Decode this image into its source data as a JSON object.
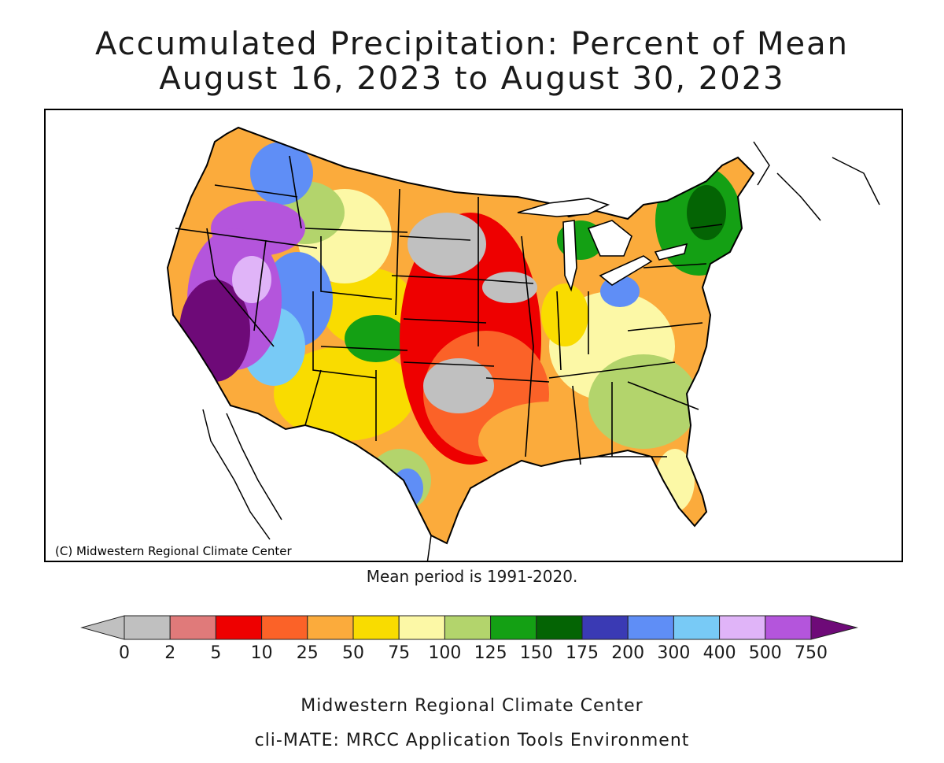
{
  "title_line1": "Accumulated Precipitation: Percent of Mean",
  "title_line2": "August 16, 2023 to August 30, 2023",
  "credit": "(C) Midwestern Regional Climate Center",
  "mean_note": "Mean period is 1991-2020.",
  "footer_line1": "Midwestern Regional Climate Center",
  "footer_line2": "cli-MATE: MRCC Application Tools Environment",
  "legend": {
    "bins": [
      {
        "color": "#c0c0c0"
      },
      {
        "color": "#e07a7a"
      },
      {
        "color": "#ee0000"
      },
      {
        "color": "#fb6228"
      },
      {
        "color": "#fbab3c"
      },
      {
        "color": "#f9dc00"
      },
      {
        "color": "#fcf8a6"
      },
      {
        "color": "#b3d46c"
      },
      {
        "color": "#14a014"
      },
      {
        "color": "#046404"
      },
      {
        "color": "#3a3ab4"
      },
      {
        "color": "#5f8ef6"
      },
      {
        "color": "#78caf6"
      },
      {
        "color": "#e0b4f8"
      },
      {
        "color": "#b455dc"
      }
    ],
    "low_arrow_color": "#c0c0c0",
    "high_arrow_color": "#6e0a78",
    "tick_labels": [
      "0",
      "2",
      "5",
      "10",
      "25",
      "50",
      "75",
      "100",
      "125",
      "150",
      "175",
      "200",
      "300",
      "400",
      "500",
      "750"
    ]
  },
  "map_colors": {
    "gray": "#c0c0c0",
    "red": "#ee0000",
    "orange_red": "#fb6228",
    "orange": "#fbab3c",
    "yellow": "#f9dc00",
    "pale_yellow": "#fcf8a6",
    "light_green": "#b3d46c",
    "green": "#14a014",
    "dark_green": "#046404",
    "navy": "#3a3ab4",
    "blue": "#5f8ef6",
    "light_blue": "#78caf6",
    "lavender": "#e0b4f8",
    "purple": "#b455dc",
    "dark_purple": "#6e0a78"
  }
}
